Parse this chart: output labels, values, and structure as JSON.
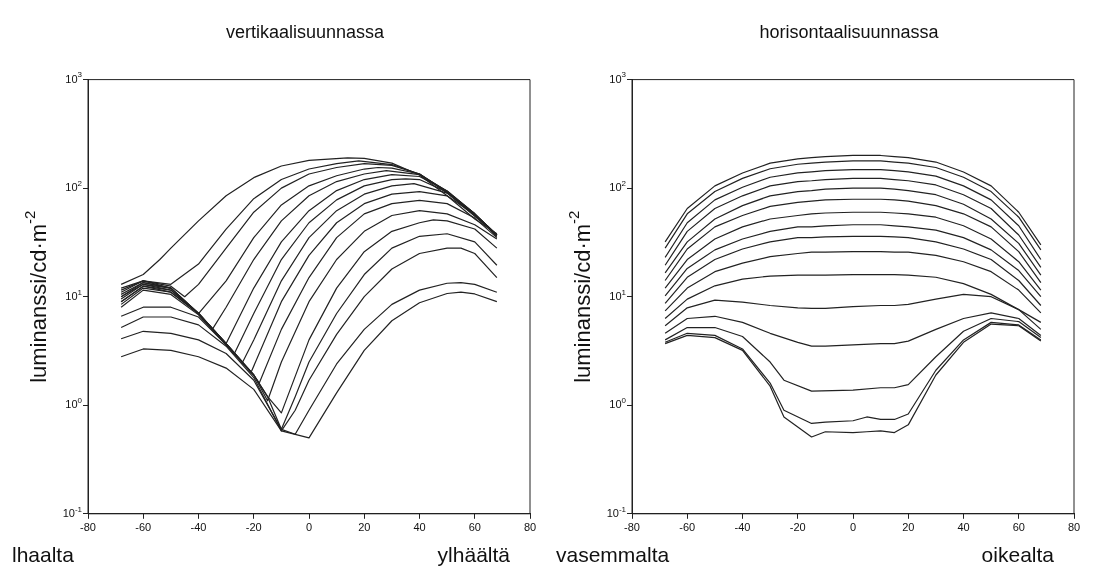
{
  "chart_data": [
    {
      "type": "line",
      "title": "vertikaalisuunnassa",
      "ylabel": "luminanssi/cd·m$^{-2}$",
      "annotations": [
        "lhaalta",
        "ylhäältä"
      ],
      "color": "#222222",
      "log": "y",
      "legend": false,
      "grid": false,
      "xlim": [
        -80,
        80
      ],
      "xticks": [
        -80,
        -60,
        -40,
        -20,
        0,
        20,
        40,
        60,
        80
      ],
      "ylim": [
        0.1,
        1000
      ],
      "yticks": [
        {
          "value": 0.1,
          "label": "10$^{-1}$"
        },
        {
          "value": 1,
          "label": "10$^{0}$"
        },
        {
          "value": 10,
          "label": "10$^{1}$"
        },
        {
          "value": 100,
          "label": "10$^{2}$"
        },
        {
          "value": 1000,
          "label": "10$^{3}$"
        }
      ],
      "series": [
        {
          "x": [
            -68,
            -60,
            -54,
            -50,
            -40,
            -30,
            -20,
            -10,
            0,
            14,
            20,
            30,
            40,
            50,
            60,
            68
          ],
          "values": [
            13,
            16,
            22,
            28,
            50,
            85,
            125,
            160,
            180,
            190,
            188,
            170,
            132,
            85,
            52,
            38
          ]
        },
        {
          "x": [
            -68,
            -60,
            -50,
            -40,
            -30,
            -20,
            -10,
            0,
            10,
            18,
            30,
            40,
            50,
            60,
            68
          ],
          "values": [
            12,
            14,
            13,
            20,
            42,
            80,
            120,
            150,
            168,
            178,
            165,
            135,
            90,
            55,
            37
          ]
        },
        {
          "x": [
            -68,
            -60,
            -50,
            -45,
            -40,
            -30,
            -20,
            -10,
            0,
            10,
            20,
            30,
            40,
            50,
            60,
            68
          ],
          "values": [
            11.5,
            14,
            12.5,
            10,
            13,
            28,
            60,
            100,
            135,
            155,
            168,
            162,
            135,
            92,
            56,
            37
          ]
        },
        {
          "x": [
            -68,
            -60,
            -50,
            -40,
            -30,
            -20,
            -10,
            0,
            10,
            20,
            25,
            30,
            40,
            50,
            60,
            68
          ],
          "values": [
            11,
            14,
            12,
            7,
            14,
            35,
            70,
            105,
            130,
            150,
            155,
            153,
            135,
            93,
            57,
            37
          ]
        },
        {
          "x": [
            -68,
            -60,
            -50,
            -40,
            -35,
            -30,
            -20,
            -10,
            0,
            10,
            20,
            28,
            40,
            50,
            60,
            68
          ],
          "values": [
            10.5,
            13.5,
            12,
            7,
            5,
            8,
            22,
            50,
            85,
            115,
            135,
            145,
            133,
            94,
            58,
            37
          ]
        },
        {
          "x": [
            -68,
            -60,
            -50,
            -40,
            -30,
            -20,
            -10,
            0,
            10,
            20,
            30,
            40,
            50,
            60,
            68
          ],
          "values": [
            10,
            13.5,
            12,
            7,
            3.7,
            12,
            32,
            62,
            95,
            120,
            133,
            128,
            94,
            58,
            37
          ]
        },
        {
          "x": [
            -68,
            -60,
            -50,
            -40,
            -30,
            -27,
            -20,
            -10,
            0,
            10,
            20,
            30,
            35,
            40,
            50,
            60,
            68
          ],
          "values": [
            10,
            13,
            12,
            7,
            3.7,
            3,
            7,
            22,
            48,
            78,
            105,
            120,
            122,
            120,
            92,
            58,
            37
          ]
        },
        {
          "x": [
            -68,
            -60,
            -50,
            -40,
            -30,
            -24,
            -20,
            -10,
            0,
            10,
            20,
            30,
            38,
            50,
            60,
            68
          ],
          "values": [
            9.5,
            13,
            11.5,
            7,
            3.7,
            2.5,
            4,
            14,
            35,
            62,
            88,
            105,
            110,
            90,
            58,
            36
          ]
        },
        {
          "x": [
            -68,
            -60,
            -50,
            -40,
            -30,
            -21,
            -10,
            0,
            10,
            20,
            30,
            40,
            50,
            60,
            68
          ],
          "values": [
            9,
            12.5,
            11.5,
            7,
            3.7,
            2,
            9,
            24,
            48,
            72,
            88,
            93,
            85,
            57,
            36
          ]
        },
        {
          "x": [
            -68,
            -60,
            -50,
            -40,
            -30,
            -20,
            -18,
            -10,
            0,
            10,
            20,
            30,
            40,
            50,
            60,
            68
          ],
          "values": [
            9,
            12.5,
            11,
            7,
            3.7,
            1.9,
            1.6,
            5,
            15,
            35,
            58,
            72,
            77,
            72,
            53,
            35
          ]
        },
        {
          "x": [
            -68,
            -60,
            -50,
            -40,
            -30,
            -20,
            -15,
            -10,
            0,
            10,
            20,
            30,
            40,
            50,
            60,
            68
          ],
          "values": [
            8.5,
            12,
            11,
            7,
            3.7,
            1.9,
            1.1,
            2.5,
            9,
            22,
            40,
            56,
            62,
            58,
            46,
            34
          ]
        },
        {
          "x": [
            -68,
            -60,
            -50,
            -40,
            -30,
            -20,
            -15,
            -10,
            0,
            10,
            20,
            30,
            40,
            45,
            50,
            60,
            68
          ],
          "values": [
            8,
            11.5,
            10.5,
            6.8,
            3.6,
            1.9,
            1.2,
            0.85,
            4,
            12,
            26,
            40,
            48,
            51,
            50,
            42,
            28
          ]
        },
        {
          "x": [
            -68,
            -60,
            -50,
            -40,
            -30,
            -20,
            -15,
            -10,
            -5,
            0,
            10,
            20,
            30,
            40,
            50,
            60,
            68
          ],
          "values": [
            6.6,
            8,
            8,
            6.5,
            3.6,
            1.9,
            1.2,
            0.6,
            1.2,
            2.5,
            7,
            16,
            28,
            36,
            38,
            32,
            19.5
          ]
        },
        {
          "x": [
            -68,
            -60,
            -50,
            -40,
            -30,
            -20,
            -10,
            -5,
            0,
            10,
            20,
            30,
            40,
            50,
            55,
            60,
            68
          ],
          "values": [
            5.2,
            6.5,
            6.5,
            5.5,
            3.5,
            1.8,
            0.58,
            0.9,
            1.7,
            4.5,
            10,
            18,
            25,
            28,
            28,
            25,
            15
          ]
        },
        {
          "x": [
            -68,
            -60,
            -50,
            -40,
            -30,
            -20,
            -10,
            -5,
            0,
            10,
            20,
            30,
            40,
            50,
            55,
            60,
            68
          ],
          "values": [
            4.1,
            4.8,
            4.6,
            4,
            3,
            1.7,
            0.6,
            0.54,
            0.9,
            2.4,
            5,
            8.5,
            11.5,
            13.3,
            13.5,
            13,
            11
          ]
        },
        {
          "x": [
            -68,
            -60,
            -50,
            -40,
            -30,
            -20,
            -10,
            0,
            10,
            20,
            30,
            40,
            50,
            55,
            60,
            68
          ],
          "values": [
            2.8,
            3.3,
            3.2,
            2.8,
            2.2,
            1.4,
            0.58,
            0.5,
            1.3,
            3.2,
            6,
            8.8,
            10.7,
            11,
            10.6,
            9
          ]
        }
      ]
    },
    {
      "type": "line",
      "title": "horisontaalisuunnassa",
      "ylabel": "luminanssi/cd·m$^{-2}$",
      "annotations": [
        "vasemmalta",
        "oikealta"
      ],
      "color": "#222222",
      "log": "y",
      "legend": false,
      "grid": false,
      "xlim": [
        -80,
        80
      ],
      "xticks": [
        -80,
        -60,
        -40,
        -20,
        0,
        20,
        40,
        60,
        80
      ],
      "ylim": [
        0.1,
        1000
      ],
      "yticks": [
        {
          "value": 0.1,
          "label": "10$^{-1}$"
        },
        {
          "value": 1,
          "label": "10$^{0}$"
        },
        {
          "value": 10,
          "label": "10$^{1}$"
        },
        {
          "value": 100,
          "label": "10$^{2}$"
        },
        {
          "value": 1000,
          "label": "10$^{3}$"
        }
      ],
      "x": [
        -68,
        -60,
        -50,
        -40,
        -30,
        -20,
        -15,
        -10,
        0,
        10,
        15,
        20,
        30,
        40,
        50,
        60,
        68
      ],
      "series": [
        {
          "values": [
            32,
            65,
            105,
            138,
            170,
            186,
            191,
            195,
            200,
            200,
            195,
            191,
            174,
            141,
            105,
            60,
            30
          ]
        },
        {
          "values": [
            28,
            58,
            93,
            123,
            151,
            166,
            170,
            174,
            178,
            178,
            174,
            170,
            155,
            126,
            93,
            54,
            27
          ]
        },
        {
          "values": [
            23,
            48,
            78,
            102,
            126,
            138,
            141,
            145,
            148,
            148,
            145,
            141,
            129,
            105,
            78,
            45,
            22
          ]
        },
        {
          "values": [
            19.5,
            40,
            65,
            85,
            105,
            115,
            117,
            120,
            123,
            123,
            120,
            117,
            107,
            87,
            65,
            37,
            18.6
          ]
        },
        {
          "values": [
            16.6,
            32,
            52,
            69,
            85,
            93,
            95,
            98,
            100,
            100,
            98,
            95,
            87,
            71,
            52,
            31,
            15.8
          ]
        },
        {
          "values": [
            14.1,
            27.5,
            44,
            56,
            68,
            74,
            76,
            78,
            79,
            79,
            78,
            76,
            69,
            58,
            44,
            26,
            13.5
          ]
        },
        {
          "values": [
            12,
            22,
            34,
            44,
            52,
            56,
            58,
            59,
            60,
            60,
            59,
            58,
            54,
            45,
            34,
            21,
            11.5
          ]
        },
        {
          "values": [
            10.2,
            18.2,
            27,
            34,
            40,
            44,
            44,
            45,
            46,
            46,
            45,
            44,
            41,
            35,
            27,
            17.4,
            10
          ]
        },
        {
          "values": [
            8.7,
            15.1,
            22,
            27.5,
            32,
            35,
            35,
            35.5,
            36,
            36,
            35.5,
            35,
            32,
            27.5,
            22,
            14.1,
            8.3
          ]
        },
        {
          "values": [
            7.4,
            12,
            17,
            20.4,
            23.4,
            25,
            25.7,
            25.7,
            26,
            26,
            25.7,
            25.7,
            24,
            21,
            17,
            11.5,
            7.1
          ]
        },
        {
          "values": [
            6.3,
            9.5,
            12.6,
            14.5,
            15.5,
            15.8,
            15.8,
            15.8,
            16,
            16,
            16,
            15.8,
            15.1,
            13.2,
            10.5,
            7.6,
            5.8
          ]
        },
        {
          "values": [
            5.4,
            7.9,
            9.3,
            8.9,
            8.3,
            7.9,
            7.8,
            7.8,
            8.1,
            8.3,
            8.3,
            8.5,
            9.5,
            10.5,
            10,
            7.6,
            5
          ]
        },
        {
          "values": [
            4.6,
            6.3,
            6.6,
            5.8,
            4.6,
            3.8,
            3.5,
            3.5,
            3.6,
            3.7,
            3.7,
            3.9,
            5,
            6.3,
            7.1,
            6.3,
            4.4
          ]
        },
        {
          "x": [
            -68,
            -60,
            -50,
            -40,
            -30,
            -25,
            -15,
            0,
            10,
            15,
            20,
            30,
            40,
            50,
            60,
            68
          ],
          "values": [
            4,
            5.2,
            5.2,
            4.3,
            2.5,
            1.7,
            1.35,
            1.38,
            1.45,
            1.45,
            1.55,
            2.8,
            4.8,
            6.3,
            5.9,
            4.2
          ]
        },
        {
          "x": [
            -68,
            -60,
            -50,
            -40,
            -30,
            -25,
            -15,
            -10,
            0,
            5,
            10,
            15,
            20,
            30,
            40,
            50,
            60,
            68
          ],
          "values": [
            3.8,
            4.6,
            4.4,
            3.3,
            1.6,
            0.9,
            0.68,
            0.7,
            0.72,
            0.78,
            0.74,
            0.74,
            0.83,
            2.1,
            4,
            5.8,
            5.5,
            4
          ]
        },
        {
          "x": [
            -68,
            -60,
            -50,
            -40,
            -30,
            -25,
            -15,
            -10,
            0,
            5,
            10,
            15,
            20,
            30,
            40,
            50,
            60,
            68
          ],
          "values": [
            3.7,
            4.4,
            4.2,
            3.2,
            1.5,
            0.78,
            0.51,
            0.57,
            0.56,
            0.57,
            0.58,
            0.56,
            0.66,
            1.9,
            3.8,
            5.6,
            5.4,
            3.9
          ]
        }
      ]
    }
  ]
}
